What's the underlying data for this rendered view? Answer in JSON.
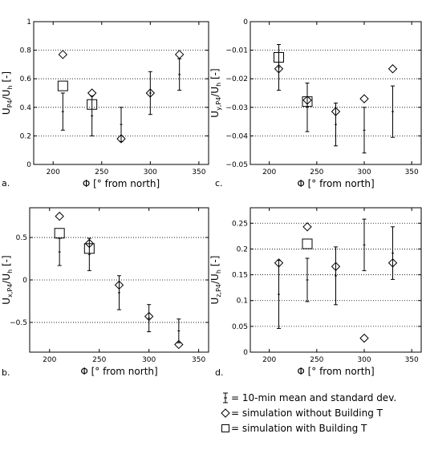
{
  "figure": {
    "legend": {
      "errorbar": "= 10-min mean and standard dev.",
      "diamond": "= simulation without Building T",
      "square": "= simulation with Building T"
    }
  },
  "chart_data": [
    {
      "type": "scatter",
      "panel": "a.",
      "xlabel": "Φ [° from north]",
      "ylabel": "U_P4/U_h [-]",
      "ylabel_main": "U",
      "ylabel_sub": "P4",
      "ylabel_rest": "/U",
      "ylabel_sub2": "h",
      "ylabel_tail": " [-]",
      "xlim": [
        180,
        360
      ],
      "ylim": [
        0,
        1
      ],
      "xticks": [
        200,
        250,
        300,
        350
      ],
      "yticks": [
        0,
        0.2,
        0.4,
        0.6,
        0.8,
        1
      ],
      "ytick_labels": [
        "0",
        "0.2",
        "0.4",
        "0.6",
        "0.8",
        "1"
      ],
      "grid": "horizontal dotted",
      "measured": [
        {
          "x": 210,
          "mean": 0.37,
          "std": 0.13
        },
        {
          "x": 240,
          "mean": 0.34,
          "std": 0.14
        },
        {
          "x": 270,
          "mean": 0.28,
          "std": 0.12
        },
        {
          "x": 300,
          "mean": 0.5,
          "std": 0.15
        },
        {
          "x": 330,
          "mean": 0.63,
          "std": 0.11
        }
      ],
      "sim_without_building_t": [
        {
          "x": 210,
          "y": 0.77
        },
        {
          "x": 240,
          "y": 0.5
        },
        {
          "x": 270,
          "y": 0.18
        },
        {
          "x": 300,
          "y": 0.5
        },
        {
          "x": 330,
          "y": 0.77
        }
      ],
      "sim_with_building_t": [
        {
          "x": 210,
          "y": 0.55
        },
        {
          "x": 240,
          "y": 0.42
        }
      ]
    },
    {
      "type": "scatter",
      "panel": "c.",
      "xlabel": "Φ [° from north]",
      "ylabel": "U_y,P4/U_h [-]",
      "ylabel_main": "U",
      "ylabel_sub": "y,P4",
      "ylabel_rest": "/U",
      "ylabel_sub2": "h",
      "ylabel_tail": " [-]",
      "xlim": [
        180,
        360
      ],
      "ylim": [
        -0.05,
        0
      ],
      "xticks": [
        200,
        250,
        300,
        350
      ],
      "yticks": [
        -0.05,
        -0.04,
        -0.03,
        -0.02,
        -0.01,
        0
      ],
      "ytick_labels": [
        "−0.05",
        "−0.04",
        "−0.03",
        "−0.02",
        "−0.01",
        "0"
      ],
      "grid": "horizontal dotted",
      "measured": [
        {
          "x": 210,
          "mean": -0.016,
          "std": 0.008
        },
        {
          "x": 240,
          "mean": -0.03,
          "std": 0.0085
        },
        {
          "x": 270,
          "mean": -0.036,
          "std": 0.0075
        },
        {
          "x": 300,
          "mean": -0.038,
          "std": 0.008
        },
        {
          "x": 330,
          "mean": -0.0315,
          "std": 0.009
        }
      ],
      "sim_without_building_t": [
        {
          "x": 210,
          "y": -0.0165
        },
        {
          "x": 240,
          "y": -0.0275
        },
        {
          "x": 270,
          "y": -0.0315
        },
        {
          "x": 300,
          "y": -0.027
        },
        {
          "x": 330,
          "y": -0.0165
        }
      ],
      "sim_with_building_t": [
        {
          "x": 210,
          "y": -0.0125
        },
        {
          "x": 240,
          "y": -0.028
        }
      ]
    },
    {
      "type": "scatter",
      "panel": "b.",
      "xlabel": "Φ [° from north]",
      "ylabel": "U_x,P4/U_h [-]",
      "ylabel_main": "U",
      "ylabel_sub": "x,P4",
      "ylabel_rest": "/U",
      "ylabel_sub2": "h",
      "ylabel_tail": " [-]",
      "xlim": [
        180,
        360
      ],
      "ylim": [
        -0.85,
        0.85
      ],
      "xticks": [
        200,
        250,
        300,
        350
      ],
      "yticks": [
        -0.5,
        0,
        0.5
      ],
      "ytick_labels": [
        "−0.5",
        "0",
        "0.5"
      ],
      "grid": "horizontal dotted",
      "measured": [
        {
          "x": 210,
          "mean": 0.33,
          "std": 0.16
        },
        {
          "x": 240,
          "mean": 0.3,
          "std": 0.19
        },
        {
          "x": 270,
          "mean": -0.15,
          "std": 0.2
        },
        {
          "x": 300,
          "mean": -0.45,
          "std": 0.16
        },
        {
          "x": 330,
          "mean": -0.6,
          "std": 0.14
        }
      ],
      "sim_without_building_t": [
        {
          "x": 210,
          "y": 0.75
        },
        {
          "x": 240,
          "y": 0.43
        },
        {
          "x": 270,
          "y": -0.06
        },
        {
          "x": 300,
          "y": -0.43
        },
        {
          "x": 330,
          "y": -0.76
        }
      ],
      "sim_with_building_t": [
        {
          "x": 210,
          "y": 0.55
        },
        {
          "x": 240,
          "y": 0.37
        }
      ]
    },
    {
      "type": "scatter",
      "panel": "d.",
      "xlabel": "Φ [° from north]",
      "ylabel": "U_z,P4/U_h [-]",
      "ylabel_main": "U",
      "ylabel_sub": "z,P4",
      "ylabel_rest": "/U",
      "ylabel_sub2": "h",
      "ylabel_tail": " [-]",
      "xlim": [
        180,
        360
      ],
      "ylim": [
        0,
        0.28
      ],
      "xticks": [
        200,
        250,
        300,
        350
      ],
      "yticks": [
        0,
        0.05,
        0.1,
        0.15,
        0.2,
        0.25
      ],
      "ytick_labels": [
        "0",
        "0.05",
        "0.1",
        "0.15",
        "0.2",
        "0.25"
      ],
      "grid": "horizontal dotted",
      "measured": [
        {
          "x": 210,
          "mean": 0.112,
          "std": 0.066
        },
        {
          "x": 240,
          "mean": 0.14,
          "std": 0.042
        },
        {
          "x": 270,
          "mean": 0.148,
          "std": 0.056
        },
        {
          "x": 300,
          "mean": 0.208,
          "std": 0.05
        },
        {
          "x": 330,
          "mean": 0.192,
          "std": 0.051
        }
      ],
      "sim_without_building_t": [
        {
          "x": 210,
          "y": 0.173
        },
        {
          "x": 240,
          "y": 0.243
        },
        {
          "x": 270,
          "y": 0.166
        },
        {
          "x": 300,
          "y": 0.027
        },
        {
          "x": 330,
          "y": 0.173
        }
      ],
      "sim_with_building_t": [
        {
          "x": 240,
          "y": 0.21
        }
      ]
    }
  ]
}
